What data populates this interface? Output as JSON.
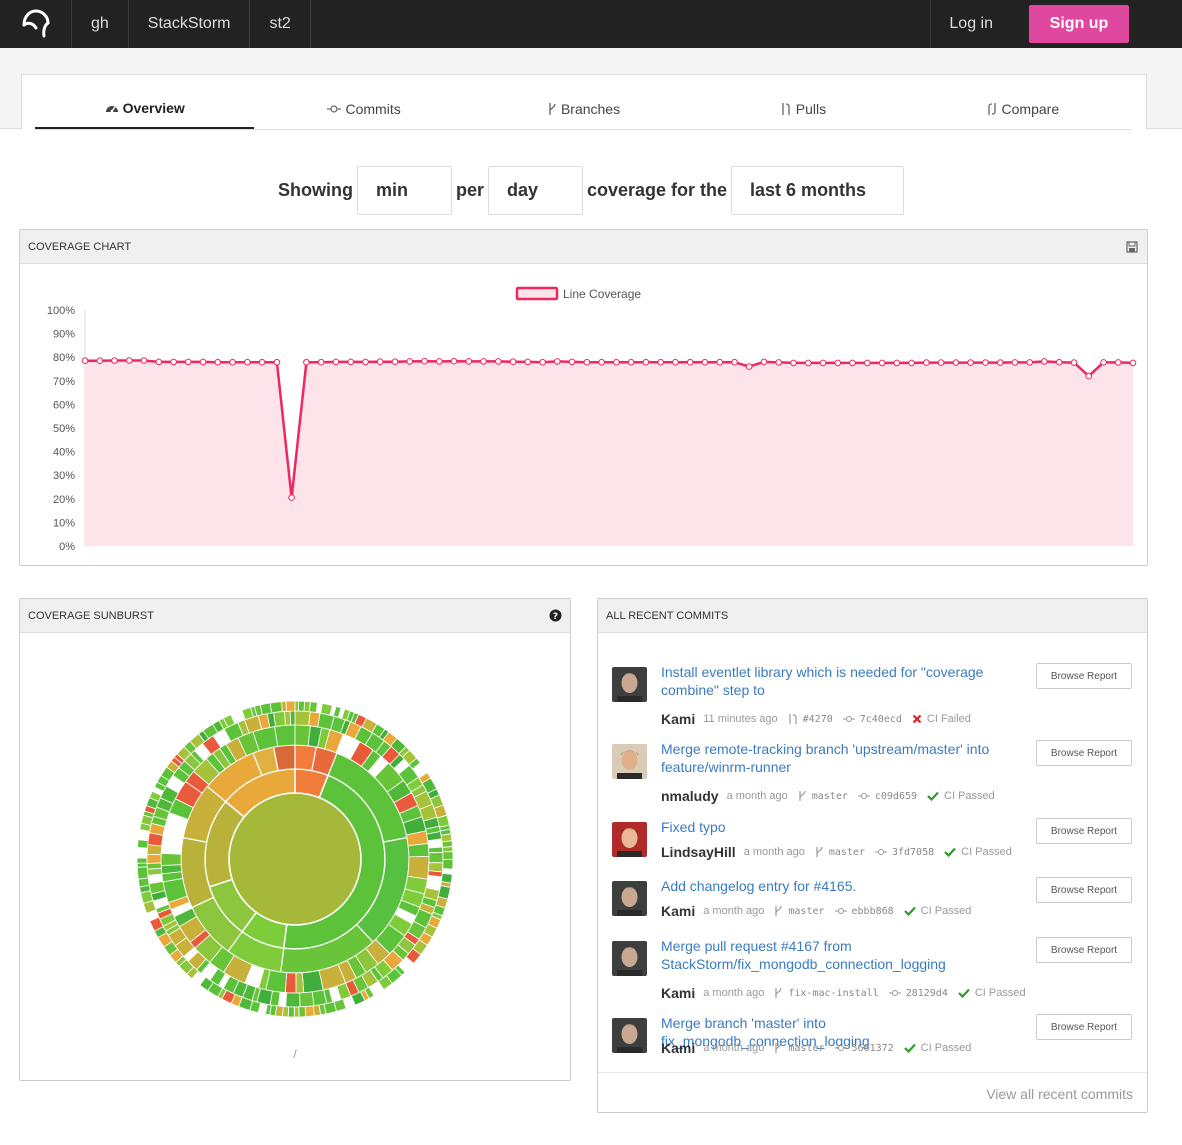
{
  "nav": {
    "breadcrumbs": [
      "gh",
      "StackStorm",
      "st2"
    ],
    "login": "Log in",
    "signup": "Sign up",
    "accent": "#e0479e"
  },
  "tabs": [
    {
      "label": "Overview",
      "icon": "dashboard-icon",
      "active": true
    },
    {
      "label": "Commits",
      "icon": "commit-icon",
      "active": false
    },
    {
      "label": "Branches",
      "icon": "branch-icon",
      "active": false
    },
    {
      "label": "Pulls",
      "icon": "pull-request-icon",
      "active": false
    },
    {
      "label": "Compare",
      "icon": "compare-icon",
      "active": false
    }
  ],
  "filter": {
    "showing": "Showing",
    "stat": "min",
    "per": "per",
    "period": "day",
    "coverage_for_the": "coverage for the",
    "range": "last 6 months"
  },
  "coverage_chart": {
    "title": "COVERAGE CHART",
    "icon": "save-icon"
  },
  "chart_data": {
    "type": "area",
    "series": [
      {
        "name": "Line Coverage",
        "color": "#f0265f",
        "values": [
          78.5,
          78.5,
          78.6,
          78.6,
          78.6,
          78,
          78,
          78,
          78,
          77.9,
          77.9,
          77.9,
          77.9,
          77.9,
          20.5,
          77.9,
          77.9,
          78,
          78,
          78,
          78.1,
          78.1,
          78.2,
          78.3,
          78.2,
          78.3,
          78.2,
          78.2,
          78.2,
          78.1,
          78,
          77.9,
          78.2,
          78,
          77.9,
          77.9,
          77.9,
          77.9,
          77.9,
          77.9,
          77.9,
          77.9,
          77.9,
          77.9,
          77.9,
          76,
          78,
          77.8,
          77.6,
          77.6,
          77.6,
          77.6,
          77.6,
          77.6,
          77.6,
          77.6,
          77.6,
          77.7,
          77.7,
          77.7,
          77.7,
          77.7,
          77.7,
          77.8,
          77.8,
          78.2,
          77.9,
          77.7,
          72,
          77.8,
          77.8,
          77.6
        ]
      }
    ],
    "ylim": [
      0,
      100
    ],
    "yticks": [
      "0%",
      "10%",
      "20%",
      "30%",
      "40%",
      "50%",
      "60%",
      "70%",
      "80%",
      "90%",
      "100%"
    ],
    "legend_position": "top-center",
    "fill": "#fde4ea",
    "grid": false
  },
  "sunburst": {
    "title": "COVERAGE SUNBURST",
    "icon": "help-icon",
    "path": "/"
  },
  "recent_commits": {
    "title": "ALL RECENT COMMITS",
    "browse_label": "Browse Report",
    "view_all": "View all recent commits",
    "items": [
      {
        "message": "Install eventlet library which is needed for \"coverage combine\" step to",
        "author": "Kami",
        "time": "11 minutes ago",
        "ref_icon": "pull-request-icon",
        "ref": "#4270",
        "sha": "7c40ecd",
        "ci": "CI Failed",
        "ci_ok": false
      },
      {
        "message": "Merge remote-tracking branch 'upstream/master' into feature/winrm-runner",
        "author": "nmaludy",
        "time": "a month ago",
        "ref_icon": "branch-icon",
        "ref": "master",
        "sha": "c09d659",
        "ci": "CI Passed",
        "ci_ok": true
      },
      {
        "message": "Fixed typo",
        "author": "LindsayHill",
        "time": "a month ago",
        "ref_icon": "branch-icon",
        "ref": "master",
        "sha": "3fd7058",
        "ci": "CI Passed",
        "ci_ok": true
      },
      {
        "message": "Add changelog entry for #4165.",
        "author": "Kami",
        "time": "a month ago",
        "ref_icon": "branch-icon",
        "ref": "master",
        "sha": "ebbb868",
        "ci": "CI Passed",
        "ci_ok": true
      },
      {
        "message": "Merge pull request #4167 from StackStorm/fix_mongodb_connection_logging",
        "author": "Kami",
        "time": "a month ago",
        "ref_icon": "branch-icon",
        "ref": "fix-mac-install",
        "sha": "28129d4",
        "ci": "CI Passed",
        "ci_ok": true
      },
      {
        "message": "Merge branch 'master' into fix_mongodb_connection_logging",
        "author": "Kami",
        "time": "a month ago",
        "ref_icon": "branch-icon",
        "ref": "master",
        "sha": "5661372",
        "ci": "CI Passed",
        "ci_ok": true
      }
    ]
  }
}
